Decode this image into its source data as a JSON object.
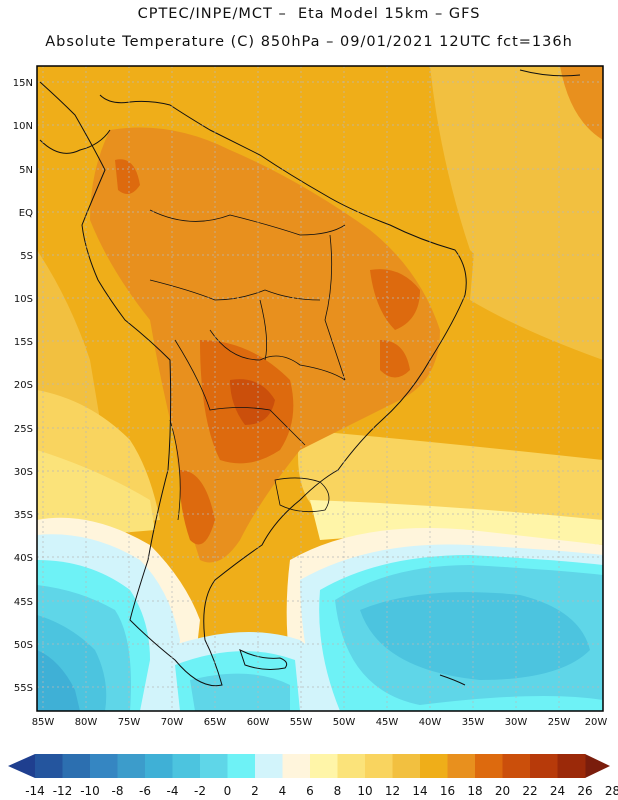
{
  "title": {
    "line1": "CPTEC/INPE/MCT –  Eta Model 15km – GFS",
    "line2": "Absolute Temperature (C) 850hPa – 09/01/2021 12UTC fct=136h"
  },
  "map": {
    "lat_labels": [
      "15N",
      "10N",
      "5N",
      "EQ",
      "5S",
      "10S",
      "15S",
      "20S",
      "25S",
      "30S",
      "35S",
      "40S",
      "45S",
      "50S",
      "55S"
    ],
    "lon_labels": [
      "85W",
      "80W",
      "75W",
      "70W",
      "65W",
      "60W",
      "55W",
      "50W",
      "45W",
      "40W",
      "35W",
      "30W",
      "25W",
      "20W"
    ]
  },
  "colorbar": {
    "labels": [
      "-14",
      "-12",
      "-10",
      "-8",
      "-6",
      "-4",
      "-2",
      "0",
      "2",
      "4",
      "6",
      "8",
      "10",
      "12",
      "14",
      "16",
      "18",
      "20",
      "22",
      "24",
      "26",
      "28"
    ],
    "colors": [
      "#1f3f8f",
      "#24559e",
      "#2c6fb0",
      "#3586c2",
      "#3c9ccb",
      "#3fb0d6",
      "#4cc4df",
      "#5fd6e8",
      "#6ef2f6",
      "#d2f4fb",
      "#fff5dc",
      "#fff5a8",
      "#fbe37a",
      "#f9d45f",
      "#f2c040",
      "#efae19",
      "#e8901e",
      "#dd6a0e",
      "#cb4f0b",
      "#b73a0a",
      "#9b2909",
      "#7a1d0c"
    ]
  }
}
